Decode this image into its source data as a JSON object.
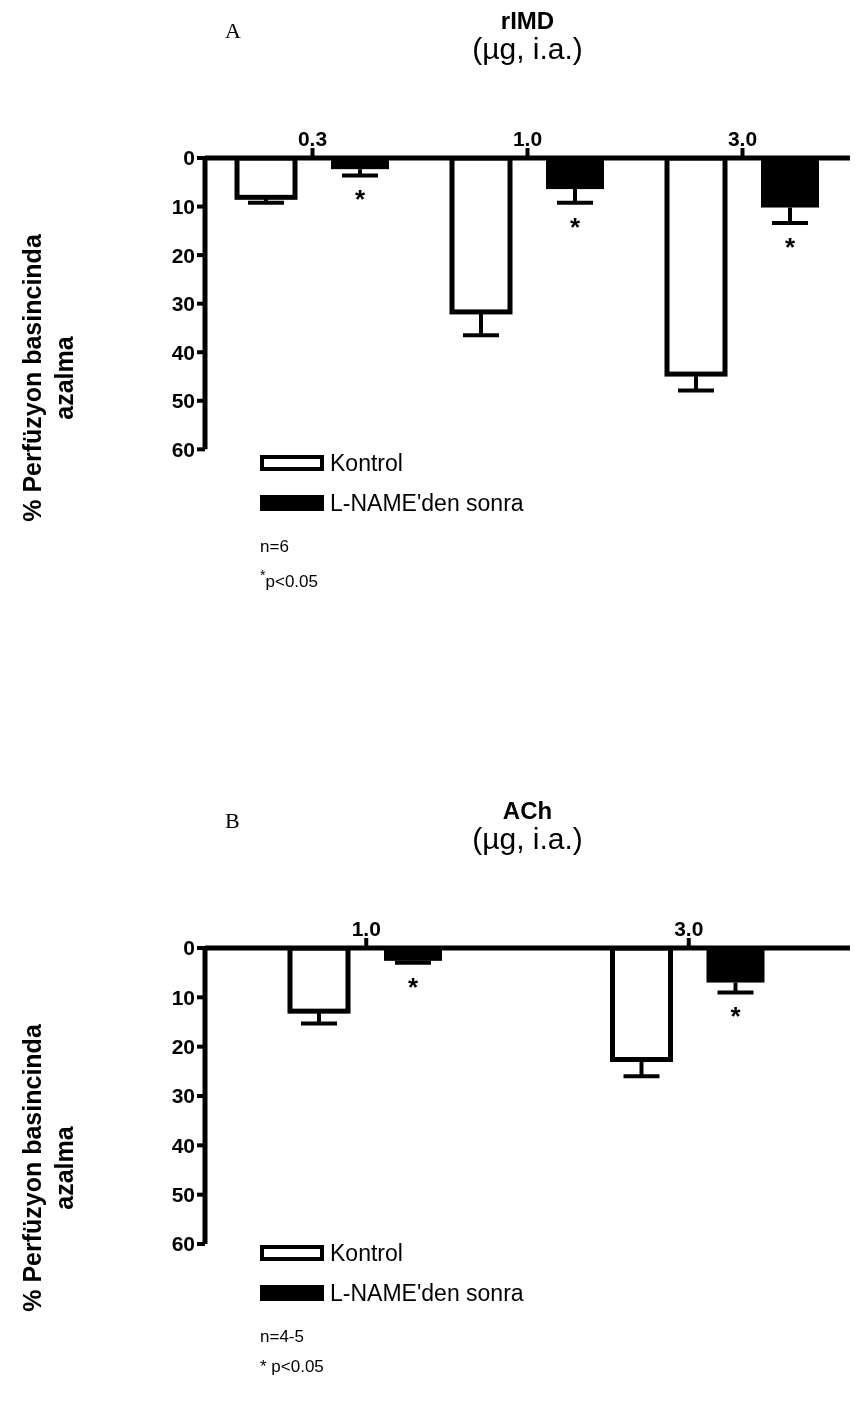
{
  "chart_data": [
    {
      "type": "bar",
      "title": "rIMD",
      "subtitle": "(µg, i.a.)",
      "ylabel": "% Perfüzyon basincinda azalma",
      "categories": [
        "0.3",
        "1.0",
        "3.0"
      ],
      "series": [
        {
          "name": "Kontrol",
          "color": "#ffffff",
          "values": [
            8.1,
            31.7,
            44.5
          ],
          "errors": [
            [
              8.1,
              9.2
            ],
            [
              31.7,
              36.5
            ],
            [
              44.5,
              47.9
            ]
          ]
        },
        {
          "name": "L-NAME'den sonra",
          "color": "#000000",
          "values": [
            2.3,
            6.4,
            10.2
          ],
          "errors": [
            [
              2.3,
              3.6
            ],
            [
              6.4,
              9.2
            ],
            [
              10.2,
              13.4
            ]
          ]
        }
      ],
      "ylim": [
        60,
        0
      ],
      "yticks": [
        0,
        10,
        20,
        30,
        40,
        50,
        60
      ],
      "grid": false,
      "legend": "bottom left",
      "annotations": [
        "A",
        "n=6",
        "$^{*}$p<0.05",
        "*",
        "*",
        "*"
      ]
    },
    {
      "type": "bar",
      "title": "ACh",
      "subtitle": "(µg, i.a.)",
      "ylabel": "% Perfüzyon basincinda azalma",
      "categories": [
        "1.0",
        "3.0"
      ],
      "series": [
        {
          "name": "Kontrol",
          "color": "#ffffff",
          "values": [
            12.8,
            22.6
          ],
          "errors": [
            [
              12.8,
              15.3
            ],
            [
              22.6,
              26.0
            ]
          ]
        },
        {
          "name": "L-NAME'den sonra",
          "color": "#000000",
          "values": [
            2.6,
            7.0
          ],
          "errors": [
            [
              2.6,
              3.0
            ],
            [
              7.0,
              9.0
            ]
          ]
        }
      ],
      "ylim": [
        60,
        0
      ],
      "yticks": [
        0,
        10,
        20,
        30,
        40,
        50,
        60
      ],
      "grid": false,
      "legend": "bottom left",
      "annotations": [
        "B",
        "n=4-5",
        "* p<0.05",
        "*",
        "*"
      ]
    }
  ]
}
